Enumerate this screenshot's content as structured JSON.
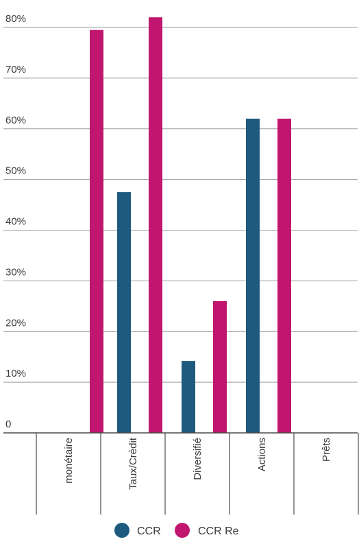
{
  "chart_data": {
    "type": "bar",
    "categories": [
      "monétaire",
      "Taux/Crédit",
      "Diversifié",
      "Actions",
      "Prêts"
    ],
    "series": [
      {
        "name": "CCR",
        "values": [
          0,
          47.5,
          14.2,
          62,
          0
        ],
        "color": "#1d5a7e"
      },
      {
        "name": "CCR Re",
        "values": [
          79.5,
          82,
          26,
          62,
          0
        ],
        "color": "#c0166f"
      }
    ],
    "yticks": [
      0,
      10,
      20,
      30,
      40,
      50,
      60,
      70,
      80
    ],
    "ytick_labels": [
      "0",
      "10%",
      "20%",
      "30%",
      "40%",
      "50%",
      "60%",
      "70%",
      "80%"
    ],
    "ylim": [
      0,
      80
    ],
    "grid": true,
    "legend_position": "bottom-center",
    "axis_color": "#4a4a4a",
    "grid_color": "#9a9a9a"
  }
}
